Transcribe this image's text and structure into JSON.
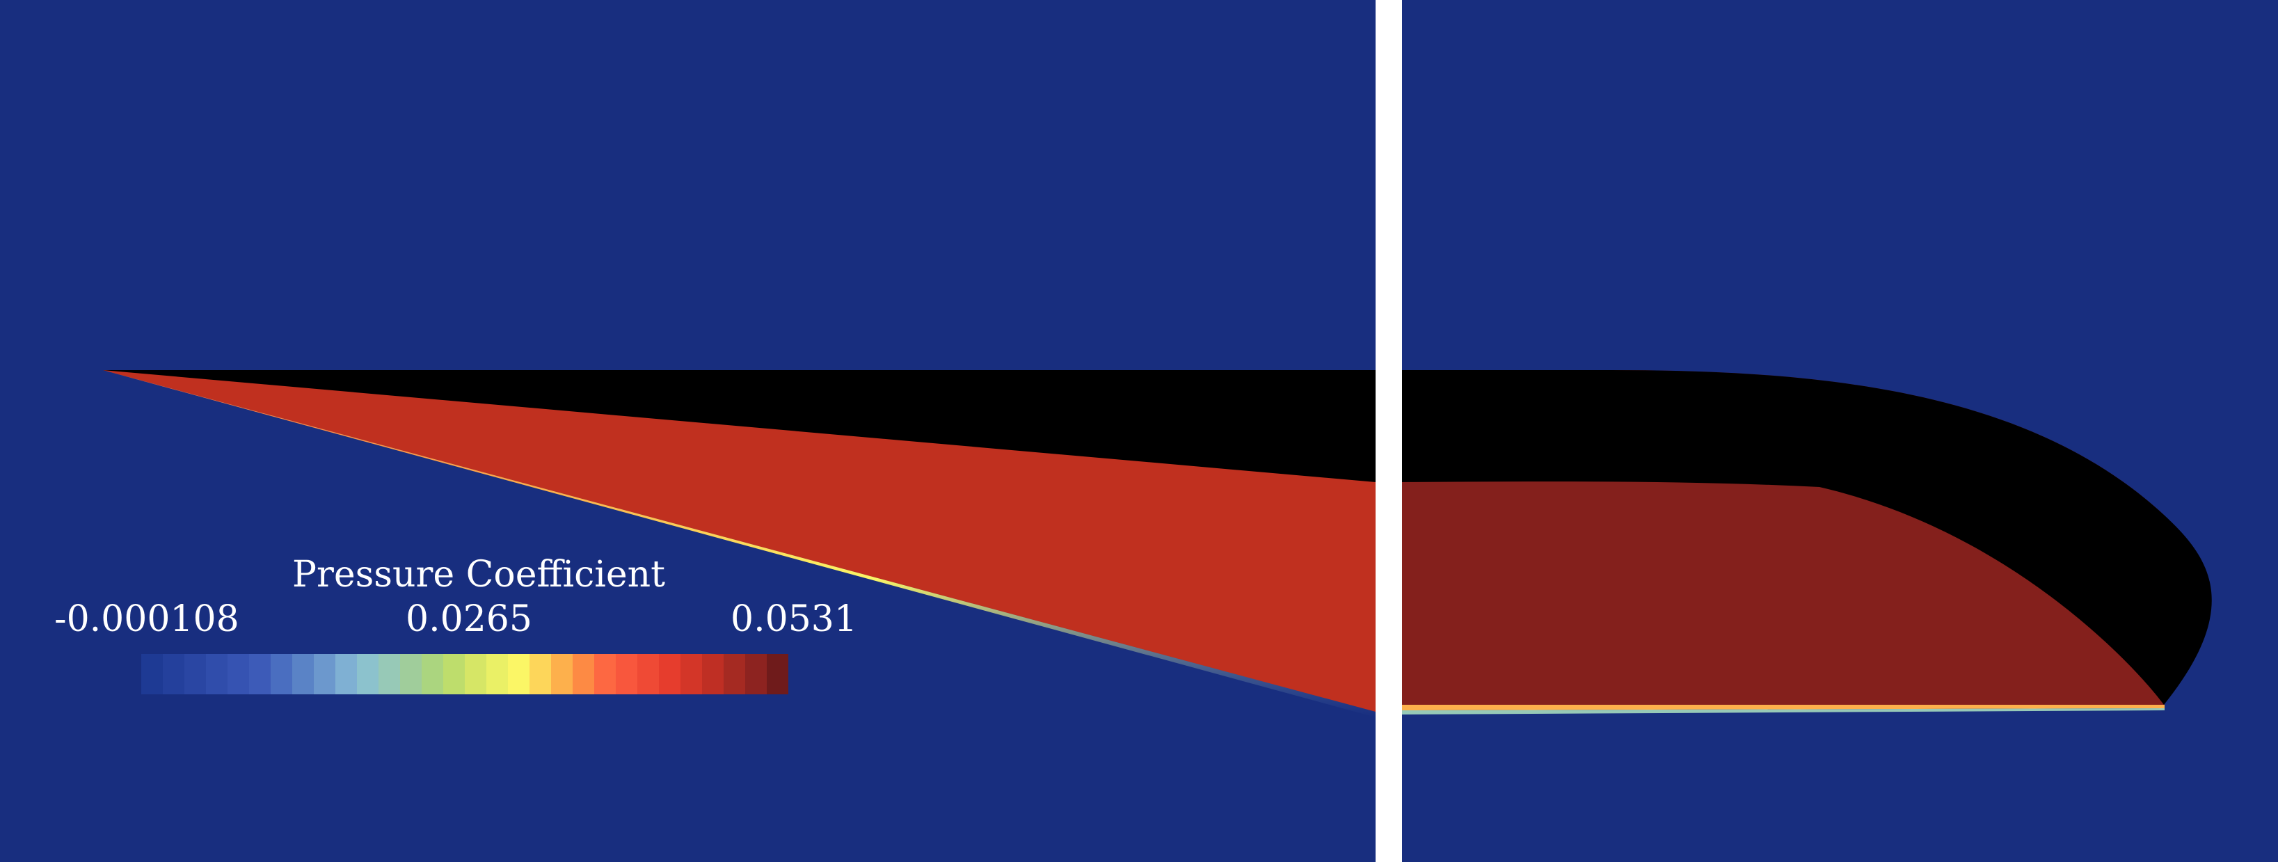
{
  "colorbar": {
    "title": "Pressure Coefficient",
    "ticks": [
      "-0.000108",
      "0.0265",
      "0.0531"
    ],
    "colors": [
      "#1e3a94",
      "#24409c",
      "#2a46a3",
      "#304dab",
      "#3653b2",
      "#3d5bb8",
      "#4a6ec0",
      "#5a83c6",
      "#6c98cd",
      "#7fb0d3",
      "#8cc2cd",
      "#97c9b7",
      "#a0cd9b",
      "#abd57f",
      "#bedd6c",
      "#d6e666",
      "#eaf066",
      "#fbf666",
      "#fdd65a",
      "#fdb04c",
      "#fd8a44",
      "#fd6842",
      "#f8573d",
      "#ef4a35",
      "#e63d2d",
      "#d33628",
      "#bf2f24",
      "#a52a22",
      "#8d2320",
      "#6f1b1b"
    ]
  },
  "colors": {
    "background": "#182e7f",
    "divider": "#ffffff",
    "shock_region_left": "#c0301f",
    "shock_region_right": "#84201c",
    "body": "#000000"
  }
}
